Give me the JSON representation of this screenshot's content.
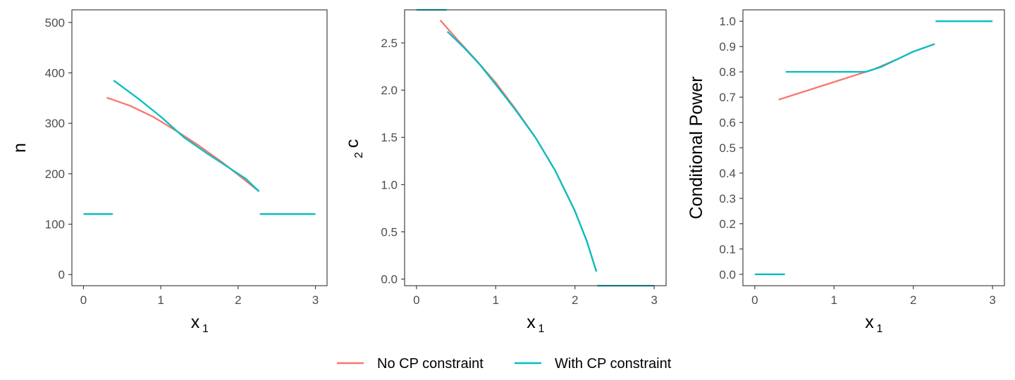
{
  "colors": {
    "no_cp": "#F8766D",
    "with_cp": "#00BFC4",
    "panel_border": "#333333",
    "tick_text": "#4d4d4d"
  },
  "legend": {
    "position": "bottom",
    "items": [
      {
        "label": "No CP constraint",
        "color": "#F8766D"
      },
      {
        "label": "With CP constraint",
        "color": "#00BFC4"
      }
    ]
  },
  "chart_data": [
    {
      "type": "line",
      "xlabel": "x",
      "xlabel_sub": "1",
      "ylabel": "n",
      "ylabel_sub": "",
      "xlim": [
        -0.15,
        3.15
      ],
      "ylim": [
        -22,
        525
      ],
      "xticks": [
        0,
        1,
        2,
        3
      ],
      "xtick_labels": [
        "0",
        "1",
        "2",
        "3"
      ],
      "yticks": [
        0,
        100,
        200,
        300,
        400,
        500
      ],
      "ytick_labels": [
        "0",
        "100",
        "200",
        "300",
        "400",
        "500"
      ],
      "grid": false,
      "series": [
        {
          "name": "No CP constraint",
          "segments": [
            [
              [
                0.3,
                351
              ],
              [
                0.6,
                335
              ],
              [
                0.9,
                313
              ],
              [
                1.2,
                285
              ],
              [
                1.5,
                255
              ],
              [
                1.8,
                222
              ],
              [
                2.0,
                198
              ],
              [
                2.27,
                165
              ]
            ]
          ]
        },
        {
          "name": "With CP constraint",
          "segments": [
            [
              [
                0.0,
                120
              ],
              [
                0.38,
                120
              ]
            ],
            [
              [
                0.39,
                385
              ],
              [
                0.7,
                350
              ],
              [
                1.0,
                313
              ],
              [
                1.3,
                272
              ],
              [
                1.6,
                240
              ],
              [
                1.9,
                210
              ],
              [
                2.1,
                190
              ],
              [
                2.27,
                165
              ]
            ],
            [
              [
                2.28,
                120
              ],
              [
                3.0,
                120
              ]
            ]
          ]
        }
      ]
    },
    {
      "type": "line",
      "xlabel": "x",
      "xlabel_sub": "1",
      "ylabel": "c",
      "ylabel_sub": "2",
      "xlim": [
        -0.15,
        3.15
      ],
      "ylim": [
        -0.07,
        2.85
      ],
      "xticks": [
        0,
        1,
        2,
        3
      ],
      "xtick_labels": [
        "0",
        "1",
        "2",
        "3"
      ],
      "yticks": [
        0.0,
        0.5,
        1.0,
        1.5,
        2.0,
        2.5
      ],
      "ytick_labels": [
        "0.0",
        "0.5",
        "1.0",
        "1.5",
        "2.0",
        "2.5"
      ],
      "grid": false,
      "series": [
        {
          "name": "No CP constraint",
          "segments": [
            [
              [
                0.3,
                2.74
              ],
              [
                0.5,
                2.55
              ],
              [
                0.75,
                2.32
              ],
              [
                1.0,
                2.08
              ],
              [
                1.25,
                1.8
              ],
              [
                1.5,
                1.5
              ],
              [
                1.75,
                1.15
              ],
              [
                2.0,
                0.72
              ],
              [
                2.15,
                0.4
              ],
              [
                2.27,
                0.08
              ]
            ]
          ]
        },
        {
          "name": "With CP constraint",
          "segments": [
            [
              [
                0.0,
                2.85
              ],
              [
                0.38,
                2.85
              ]
            ],
            [
              [
                0.39,
                2.62
              ],
              [
                0.6,
                2.45
              ],
              [
                0.8,
                2.27
              ],
              [
                1.0,
                2.06
              ],
              [
                1.25,
                1.79
              ],
              [
                1.5,
                1.5
              ],
              [
                1.75,
                1.15
              ],
              [
                2.0,
                0.72
              ],
              [
                2.15,
                0.4
              ],
              [
                2.27,
                0.08
              ]
            ],
            [
              [
                2.28,
                -0.07
              ],
              [
                3.0,
                -0.07
              ]
            ]
          ]
        }
      ]
    },
    {
      "type": "line",
      "xlabel": "x",
      "xlabel_sub": "1",
      "ylabel": "Conditional Power",
      "ylabel_sub": "",
      "xlim": [
        -0.15,
        3.15
      ],
      "ylim": [
        -0.045,
        1.045
      ],
      "xticks": [
        0,
        1,
        2,
        3
      ],
      "xtick_labels": [
        "0",
        "1",
        "2",
        "3"
      ],
      "yticks": [
        0.0,
        0.1,
        0.2,
        0.3,
        0.4,
        0.5,
        0.6,
        0.7,
        0.8,
        0.9,
        1.0
      ],
      "ytick_labels": [
        "0.0",
        "0.1",
        "0.2",
        "0.3",
        "0.4",
        "0.5",
        "0.6",
        "0.7",
        "0.8",
        "0.9",
        "1.0"
      ],
      "grid": false,
      "series": [
        {
          "name": "No CP constraint",
          "segments": [
            [
              [
                0.3,
                0.69
              ],
              [
                0.6,
                0.72
              ],
              [
                0.9,
                0.75
              ],
              [
                1.2,
                0.78
              ],
              [
                1.5,
                0.81
              ],
              [
                1.8,
                0.85
              ],
              [
                2.0,
                0.88
              ],
              [
                2.27,
                0.91
              ]
            ]
          ]
        },
        {
          "name": "With CP constraint",
          "segments": [
            [
              [
                0.0,
                0.0
              ],
              [
                0.38,
                0.0
              ]
            ],
            [
              [
                0.39,
                0.8
              ],
              [
                0.8,
                0.8
              ],
              [
                1.2,
                0.8
              ],
              [
                1.4,
                0.8
              ],
              [
                1.6,
                0.82
              ],
              [
                1.8,
                0.85
              ],
              [
                2.0,
                0.88
              ],
              [
                2.27,
                0.91
              ]
            ],
            [
              [
                2.28,
                1.0
              ],
              [
                3.0,
                1.0
              ]
            ]
          ]
        }
      ]
    }
  ]
}
